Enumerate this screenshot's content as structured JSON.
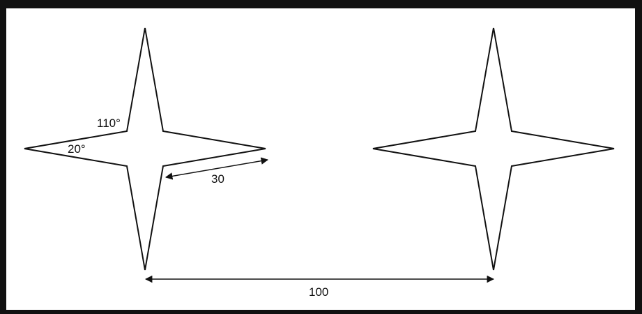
{
  "labels": {
    "angle_outer": "110°",
    "angle_tip": "20°",
    "arm_length": "30",
    "distance": "100"
  },
  "colors": {
    "background": "#ffffff",
    "frame": "#111111",
    "stroke": "#111111"
  }
}
